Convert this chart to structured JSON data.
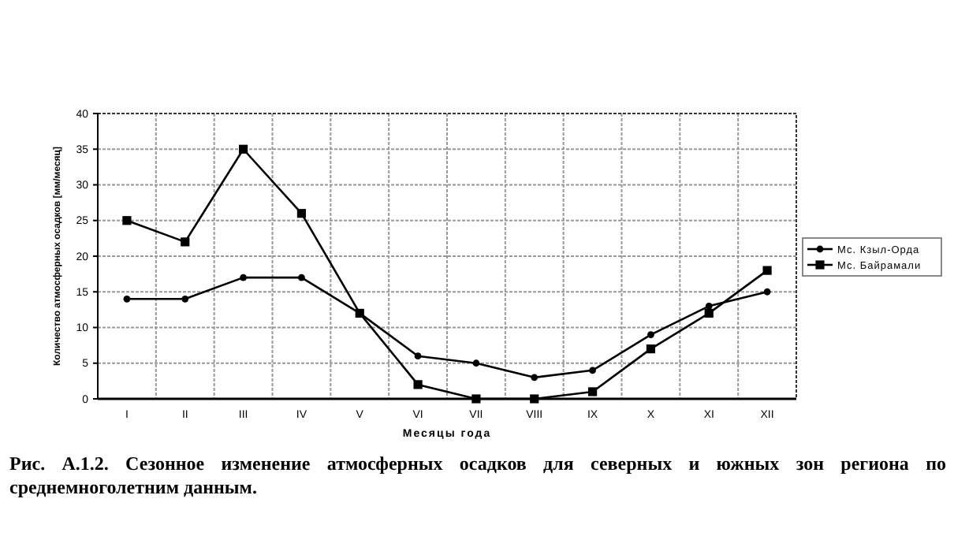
{
  "chart_data": {
    "type": "line",
    "xlabel": "Месяцы года",
    "ylabel": "Количество атмосферных осадков [мм/месяц]",
    "categories": [
      "I",
      "II",
      "III",
      "IV",
      "V",
      "VI",
      "VII",
      "VIII",
      "IX",
      "X",
      "XI",
      "XII"
    ],
    "series": [
      {
        "name": "Мс. Кзыл-Орда",
        "color": "#000000",
        "marker": "circle",
        "values": [
          14,
          14,
          17,
          17,
          12,
          6,
          5,
          3,
          4,
          9,
          13,
          15
        ]
      },
      {
        "name": "Мс. Байрамали",
        "color": "#000000",
        "marker": "square",
        "values": [
          25,
          22,
          35,
          26,
          12,
          2,
          0,
          0,
          1,
          7,
          12,
          18
        ]
      }
    ],
    "ylim": [
      0,
      40
    ],
    "yticks": [
      0,
      5,
      10,
      15,
      20,
      25,
      30,
      35,
      40
    ],
    "grid": true,
    "legend": "right",
    "line_style": "solid",
    "annotations": [
      "Рис. А.1.2. Сезонное изменение атмосферных осадков  для северных и южных зон региона по среднемноголетним данным."
    ]
  }
}
